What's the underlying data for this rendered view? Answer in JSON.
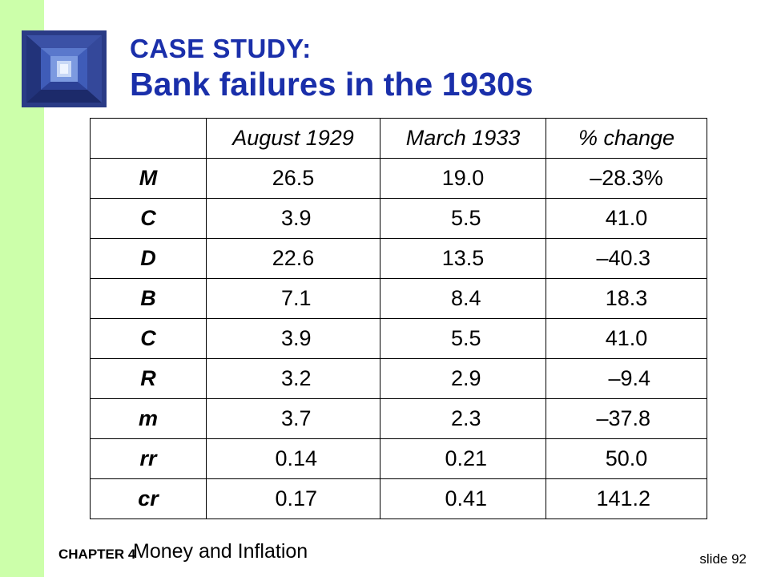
{
  "title": {
    "line1": "CASE STUDY:",
    "line2": "Bank failures in the 1930s"
  },
  "table": {
    "headers": [
      "",
      "August 1929",
      "March 1933",
      "% change"
    ],
    "rows": [
      {
        "label": "M",
        "aug1929": "26.5",
        "mar1933": "19.0",
        "change": "–28.3%"
      },
      {
        "label": "C",
        "aug1929": " 3.9",
        "mar1933": " 5.5",
        "change": " 41.0 "
      },
      {
        "label": "D",
        "aug1929": "22.6",
        "mar1933": "13.5",
        "change": "–40.3 "
      },
      {
        "label": "B",
        "aug1929": " 7.1",
        "mar1933": " 8.4",
        "change": " 18.3 "
      },
      {
        "label": "C",
        "aug1929": " 3.9",
        "mar1933": " 5.5",
        "change": " 41.0 "
      },
      {
        "label": "R",
        "aug1929": " 3.2",
        "mar1933": " 2.9",
        "change": "  –9.4 "
      },
      {
        "label": "m",
        "aug1929": " 3.7",
        "mar1933": " 2.3",
        "change": "–37.8 "
      },
      {
        "label": "rr",
        "aug1929": " 0.14",
        "mar1933": " 0.21",
        "change": " 50.0 "
      },
      {
        "label": "cr",
        "aug1929": " 0.17",
        "mar1933": " 0.41",
        "change": "141.2 "
      }
    ]
  },
  "footer": {
    "chapter": "CHAPTER 4",
    "topic": "Money and Inflation",
    "slide": "slide 92"
  },
  "colors": {
    "title": "#1a2faa",
    "sidebar": "#ccffaa",
    "logo": "#2c3f8c"
  },
  "icons": {
    "logo": "vault-tunnel-photo"
  }
}
